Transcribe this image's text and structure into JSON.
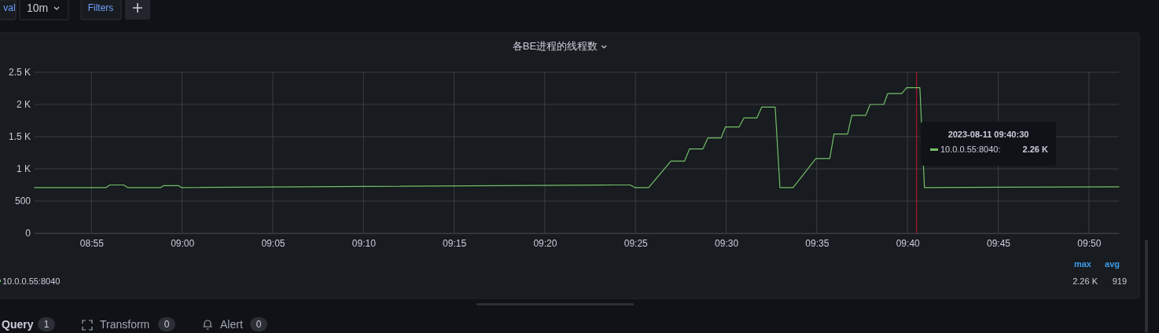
{
  "chart_data": {
    "type": "line",
    "title": "各BE进程的线程数",
    "x": [
      8.8644,
      8.93,
      8.9336,
      8.9463,
      8.9499,
      8.9802,
      8.9831,
      8.9965,
      8.9993,
      9.3983,
      9.4117,
      9.416,
      9.4287,
      9.4492,
      9.4617,
      9.4663,
      9.4786,
      9.4831,
      9.4953,
      9.4993,
      9.5118,
      9.5163,
      9.5282,
      9.5327,
      9.545,
      9.5494,
      9.5615,
      9.5824,
      9.5952,
      9.5991,
      9.6116,
      9.6154,
      9.6281,
      9.6323,
      9.6448,
      9.6485,
      9.6613,
      9.6658,
      9.678,
      9.6822,
      9.8609
    ],
    "series": [
      {
        "name": "10.0.0.55:8040",
        "color": "#73bf69",
        "values": [
          710,
          710,
          750,
          750,
          710,
          710,
          740,
          740,
          710,
          750,
          750,
          710,
          710,
          1120,
          1120,
          1310,
          1310,
          1480,
          1480,
          1650,
          1650,
          1790,
          1790,
          1960,
          1960,
          710,
          710,
          1160,
          1160,
          1540,
          1540,
          1830,
          1830,
          2000,
          2000,
          2170,
          2170,
          2260,
          2260,
          710,
          720
        ]
      }
    ],
    "xlim": [
      8.8644,
      9.8609
    ],
    "xticks": [
      {
        "value": 8.91667,
        "label": "08:55"
      },
      {
        "value": 9,
        "label": "09:00"
      },
      {
        "value": 9.08333,
        "label": "09:05"
      },
      {
        "value": 9.16667,
        "label": "09:10"
      },
      {
        "value": 9.25,
        "label": "09:15"
      },
      {
        "value": 9.33333,
        "label": "09:20"
      },
      {
        "value": 9.41667,
        "label": "09:25"
      },
      {
        "value": 9.5,
        "label": "09:30"
      },
      {
        "value": 9.58333,
        "label": "09:35"
      },
      {
        "value": 9.66667,
        "label": "09:40"
      },
      {
        "value": 9.75,
        "label": "09:45"
      },
      {
        "value": 9.83333,
        "label": "09:50"
      }
    ],
    "ylim": [
      0,
      2500
    ],
    "yticks": [
      0,
      500,
      {
        "value": 1000,
        "label": "1 K"
      },
      {
        "value": 1500,
        "label": "1.5 K"
      },
      {
        "value": 2000,
        "label": "2 K"
      },
      {
        "value": 2500,
        "label": "2.5 K"
      }
    ],
    "ref_lines": [
      {
        "axis": "x",
        "value": 9.675,
        "color": "#c4162a"
      }
    ],
    "grid": true,
    "legend": "bottom",
    "marker": "none",
    "line_style": "solid",
    "annotations": [
      "val",
      "10m",
      "Filters",
      "Query",
      "1",
      "Transform",
      "0",
      "Alert",
      "0",
      "max",
      "avg",
      "2.26 K",
      "919",
      "2023-08-11 09:40:30",
      "10.0.0.55:8040:",
      "2.26 K"
    ]
  }
}
